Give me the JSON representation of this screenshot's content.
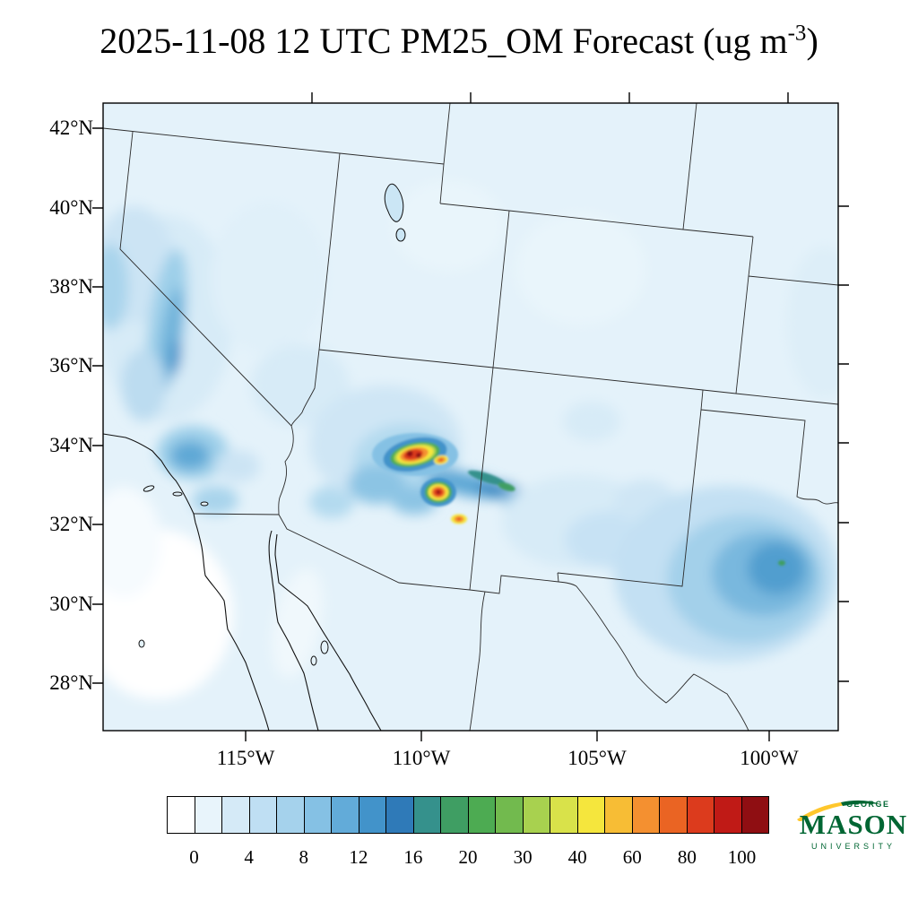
{
  "title": {
    "text": "2025-11-08 12 UTC PM25_OM Forecast (ug m",
    "exponent": "-3",
    "close": ")"
  },
  "axes": {
    "lat_labels": [
      "42°N",
      "40°N",
      "38°N",
      "36°N",
      "34°N",
      "32°N",
      "30°N",
      "28°N"
    ],
    "lon_labels": [
      "115°W",
      "110°W",
      "105°W",
      "100°W"
    ]
  },
  "colorbar": {
    "tick_labels": [
      "0",
      "4",
      "8",
      "12",
      "16",
      "20",
      "30",
      "40",
      "60",
      "80",
      "100"
    ],
    "colors": [
      "#ffffff",
      "#e8f4fb",
      "#d5eaf7",
      "#bfdff3",
      "#a5d2ec",
      "#85c1e4",
      "#62abd9",
      "#4293ca",
      "#2f7ab8",
      "#35918c",
      "#3f9e63",
      "#4dab52",
      "#72ba4e",
      "#a8d14f",
      "#d9e24a",
      "#f5e63d",
      "#f7bd35",
      "#f49030",
      "#ea6423",
      "#dc3b1d",
      "#c01a16",
      "#8f0e12"
    ]
  },
  "logo": {
    "line1": "GEORGE",
    "line2": "MASON",
    "line3": "UNIVERSITY",
    "green": "#006633",
    "gold": "#ffc72c"
  },
  "chart_data": {
    "type": "heatmap",
    "title": "2025-11-08 12 UTC PM25_OM Forecast (ug m-3)",
    "variable": "PM25_OM",
    "forecast_time": "2025-11-08 12 UTC",
    "units": "ug m-3",
    "map_region": "southwestern United States and northern Mexico",
    "x_axis": {
      "label": "longitude",
      "ticks": [
        "115°W",
        "110°W",
        "105°W",
        "100°W"
      ]
    },
    "y_axis": {
      "label": "latitude",
      "ticks": [
        "28°N",
        "30°N",
        "32°N",
        "34°N",
        "36°N",
        "38°N",
        "40°N",
        "42°N"
      ]
    },
    "colorbar_levels": [
      0,
      2,
      4,
      6,
      8,
      10,
      12,
      14,
      16,
      18,
      20,
      25,
      30,
      35,
      40,
      50,
      60,
      70,
      80,
      90,
      100
    ],
    "colorbar_tick_labels": [
      0,
      4,
      8,
      12,
      16,
      20,
      30,
      40,
      60,
      80,
      100
    ],
    "legend_position": "bottom",
    "grid": false,
    "field_summary": [
      {
        "region": "domain-wide background",
        "value_ugm3": "0-4"
      },
      {
        "region": "central California / Sierra Nevada strip",
        "value_ugm3": "6-14"
      },
      {
        "region": "southern California coast (LA to San Diego)",
        "value_ugm3": "8-16"
      },
      {
        "region": "east-central Arizona hotspot near 33.8N 110.2W",
        "value_ugm3": ">100 (dark red core)"
      },
      {
        "region": "AZ/NM border hotspot near 32.8N 109.4W",
        "value_ugm3": ">100 (dark red core)"
      },
      {
        "region": "small spot near 32.1N 109.0W",
        "value_ugm3": "40-60"
      },
      {
        "region": "smoke streak extending east into New Mexico",
        "value_ugm3": "12-25"
      },
      {
        "region": "broad west Texas maximum near 31N 100-102W",
        "value_ugm3": "6-12"
      },
      {
        "region": "Pacific ocean southwest of Baja California",
        "value_ugm3": "0"
      }
    ]
  }
}
